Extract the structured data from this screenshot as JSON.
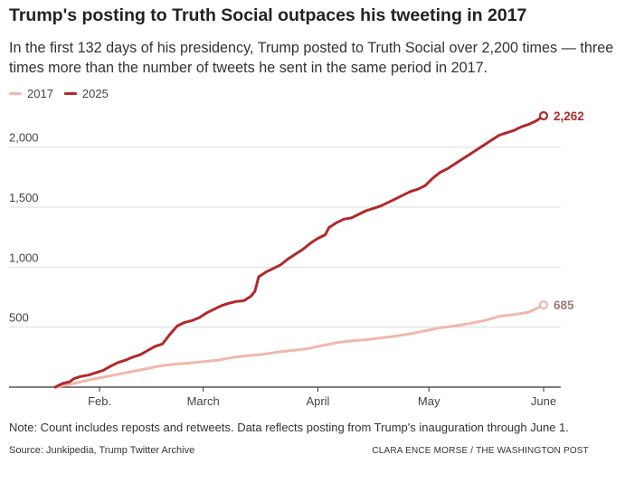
{
  "chart_data": {
    "type": "line",
    "title": "Trump's posting to Truth Social outpaces his tweeting in 2017",
    "subtitle": "In the first 132 days of his presidency, Trump posted to Truth Social over 2,200 times — three times more than the number of tweets he sent in the same period in 2017.",
    "xlabel": "",
    "ylabel": "",
    "x_ticks": [
      {
        "label": "Feb.",
        "day": 12
      },
      {
        "label": "March",
        "day": 40
      },
      {
        "label": "April",
        "day": 71
      },
      {
        "label": "May",
        "day": 101
      },
      {
        "label": "June",
        "day": 132
      }
    ],
    "y_ticks": [
      {
        "label": "500",
        "value": 500
      },
      {
        "label": "1,000",
        "value": 1000
      },
      {
        "label": "1,500",
        "value": 1500
      },
      {
        "label": "2,000",
        "value": 2000
      }
    ],
    "xlim": [
      0,
      132
    ],
    "ylim": [
      0,
      2262
    ],
    "grid": true,
    "legend_position": "top-left",
    "series": [
      {
        "name": "2017",
        "color": "#f0b8ac",
        "end_label": "685",
        "points": [
          [
            0,
            0
          ],
          [
            5,
            30
          ],
          [
            10,
            65
          ],
          [
            15,
            95
          ],
          [
            20,
            125
          ],
          [
            25,
            155
          ],
          [
            28,
            175
          ],
          [
            32,
            190
          ],
          [
            36,
            200
          ],
          [
            40,
            212
          ],
          [
            44,
            225
          ],
          [
            48,
            248
          ],
          [
            52,
            262
          ],
          [
            56,
            272
          ],
          [
            60,
            292
          ],
          [
            64,
            305
          ],
          [
            68,
            320
          ],
          [
            72,
            345
          ],
          [
            76,
            370
          ],
          [
            80,
            385
          ],
          [
            84,
            395
          ],
          [
            88,
            410
          ],
          [
            92,
            425
          ],
          [
            96,
            445
          ],
          [
            100,
            470
          ],
          [
            104,
            495
          ],
          [
            108,
            510
          ],
          [
            112,
            530
          ],
          [
            116,
            555
          ],
          [
            120,
            590
          ],
          [
            124,
            605
          ],
          [
            128,
            625
          ],
          [
            132,
            685
          ]
        ]
      },
      {
        "name": "2025",
        "color": "#b3282a",
        "end_label": "2,262",
        "points": [
          [
            0,
            0
          ],
          [
            2,
            30
          ],
          [
            4,
            45
          ],
          [
            5,
            70
          ],
          [
            7,
            90
          ],
          [
            9,
            100
          ],
          [
            11,
            120
          ],
          [
            13,
            140
          ],
          [
            15,
            175
          ],
          [
            17,
            205
          ],
          [
            19,
            225
          ],
          [
            21,
            250
          ],
          [
            23,
            270
          ],
          [
            25,
            305
          ],
          [
            27,
            340
          ],
          [
            29,
            360
          ],
          [
            31,
            440
          ],
          [
            33,
            510
          ],
          [
            35,
            540
          ],
          [
            37,
            555
          ],
          [
            39,
            580
          ],
          [
            41,
            620
          ],
          [
            43,
            650
          ],
          [
            45,
            680
          ],
          [
            47,
            700
          ],
          [
            49,
            715
          ],
          [
            51,
            720
          ],
          [
            53,
            760
          ],
          [
            54,
            800
          ],
          [
            55,
            920
          ],
          [
            57,
            960
          ],
          [
            59,
            990
          ],
          [
            61,
            1020
          ],
          [
            63,
            1070
          ],
          [
            65,
            1110
          ],
          [
            67,
            1150
          ],
          [
            69,
            1200
          ],
          [
            71,
            1240
          ],
          [
            73,
            1270
          ],
          [
            74,
            1330
          ],
          [
            76,
            1370
          ],
          [
            78,
            1400
          ],
          [
            80,
            1410
          ],
          [
            82,
            1440
          ],
          [
            84,
            1470
          ],
          [
            86,
            1490
          ],
          [
            88,
            1510
          ],
          [
            90,
            1540
          ],
          [
            92,
            1570
          ],
          [
            94,
            1600
          ],
          [
            96,
            1630
          ],
          [
            98,
            1650
          ],
          [
            100,
            1680
          ],
          [
            102,
            1740
          ],
          [
            104,
            1790
          ],
          [
            106,
            1820
          ],
          [
            108,
            1860
          ],
          [
            110,
            1900
          ],
          [
            112,
            1940
          ],
          [
            114,
            1980
          ],
          [
            116,
            2020
          ],
          [
            118,
            2060
          ],
          [
            120,
            2100
          ],
          [
            122,
            2120
          ],
          [
            124,
            2140
          ],
          [
            126,
            2170
          ],
          [
            128,
            2190
          ],
          [
            130,
            2220
          ],
          [
            132,
            2262
          ]
        ]
      }
    ]
  },
  "footer": {
    "note": "Note: Count includes reposts and retweets. Data reflects posting from Trump's inauguration through June 1.",
    "source": "Source: Junkipedia, Trump Twitter Archive",
    "credit": "CLARA ENCE MORSE / THE WASHINGTON POST"
  }
}
